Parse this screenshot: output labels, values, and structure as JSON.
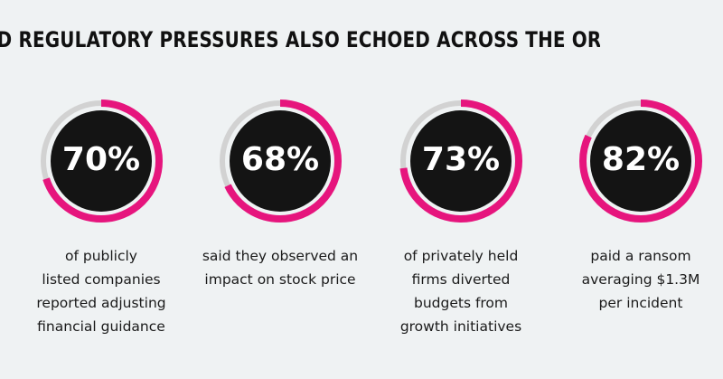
{
  "headline": "D REGULATORY PRESSURES ALSO ECHOED ACROSS THE ORGANIZATION",
  "colors": {
    "accent": "#e6157d",
    "track": "#d2d2d2",
    "disc": "#141414",
    "background": "#eff2f3"
  },
  "chart_data": {
    "type": "donut",
    "unit": "%",
    "stats": [
      {
        "value": 70,
        "label": "70%",
        "caption": [
          "of publicly",
          "listed companies",
          "reported adjusting",
          "financial guidance"
        ]
      },
      {
        "value": 68,
        "label": "68%",
        "caption": [
          "said they observed an",
          "impact on stock price"
        ]
      },
      {
        "value": 73,
        "label": "73%",
        "caption": [
          "of privately held",
          "firms diverted",
          "budgets from",
          "growth initiatives"
        ]
      },
      {
        "value": 82,
        "label": "82%",
        "caption": [
          "paid a ransom",
          "averaging $1.3M",
          "per incident"
        ]
      }
    ]
  }
}
